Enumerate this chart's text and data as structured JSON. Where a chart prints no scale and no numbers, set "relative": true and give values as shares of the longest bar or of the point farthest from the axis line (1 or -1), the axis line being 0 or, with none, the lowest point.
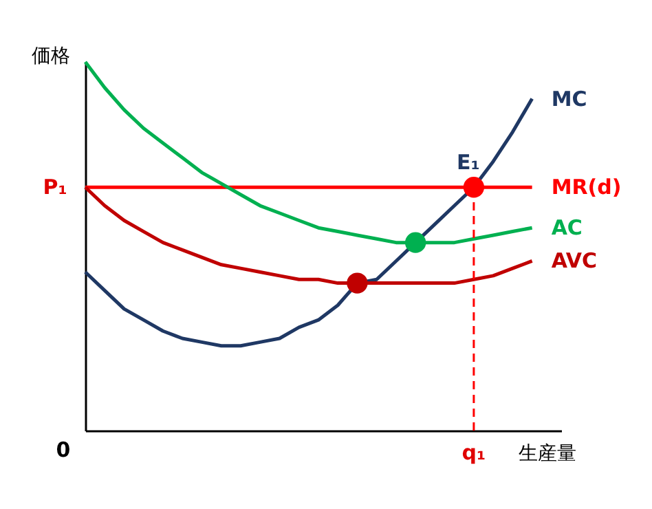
{
  "chart_data": {
    "type": "line",
    "relative": true,
    "xlabel": "生産量",
    "ylabel": "価格",
    "tick_labels": false,
    "categories": [
      null,
      null,
      null,
      null,
      null,
      null,
      null,
      null,
      null,
      null,
      null,
      null,
      null,
      null,
      null,
      null,
      null,
      null,
      null,
      null,
      null,
      null,
      null,
      null,
      null
    ],
    "series": [
      {
        "name": "MC",
        "color": "#1f3864",
        "values": [
          0.43,
          0.38,
          0.33,
          0.3,
          0.27,
          0.25,
          0.24,
          0.23,
          0.23,
          0.24,
          0.25,
          0.28,
          0.3,
          0.34,
          0.4,
          0.41,
          0.46,
          0.51,
          0.56,
          0.61,
          0.66,
          0.73,
          0.81,
          0.9,
          null
        ]
      },
      {
        "name": "MR(d)",
        "color": "#ff0000",
        "values": [
          0.66,
          0.66,
          0.66,
          0.66,
          0.66,
          0.66,
          0.66,
          0.66,
          0.66,
          0.66,
          0.66,
          0.66,
          0.66,
          0.66,
          0.66,
          0.66,
          0.66,
          0.66,
          0.66,
          0.66,
          0.66,
          0.66,
          0.66,
          0.66,
          null
        ]
      },
      {
        "name": "AC",
        "color": "#00b050",
        "values": [
          1,
          0.93,
          0.87,
          0.82,
          0.78,
          0.74,
          0.7,
          0.67,
          0.64,
          0.61,
          0.59,
          0.57,
          0.55,
          0.54,
          0.53,
          0.52,
          0.51,
          0.51,
          0.51,
          0.51,
          0.52,
          0.53,
          0.54,
          0.55,
          null
        ]
      },
      {
        "name": "AVC",
        "color": "#c00000",
        "values": [
          0.66,
          0.61,
          0.57,
          0.54,
          0.51,
          0.49,
          0.47,
          0.45,
          0.44,
          0.43,
          0.42,
          0.41,
          0.41,
          0.4,
          0.4,
          0.4,
          0.4,
          0.4,
          0.4,
          0.4,
          0.41,
          0.42,
          0.44,
          0.46,
          null
        ]
      }
    ],
    "annotations": [
      "P₁",
      "0",
      "E₁",
      "q₁"
    ],
    "line_style": "solid"
  }
}
